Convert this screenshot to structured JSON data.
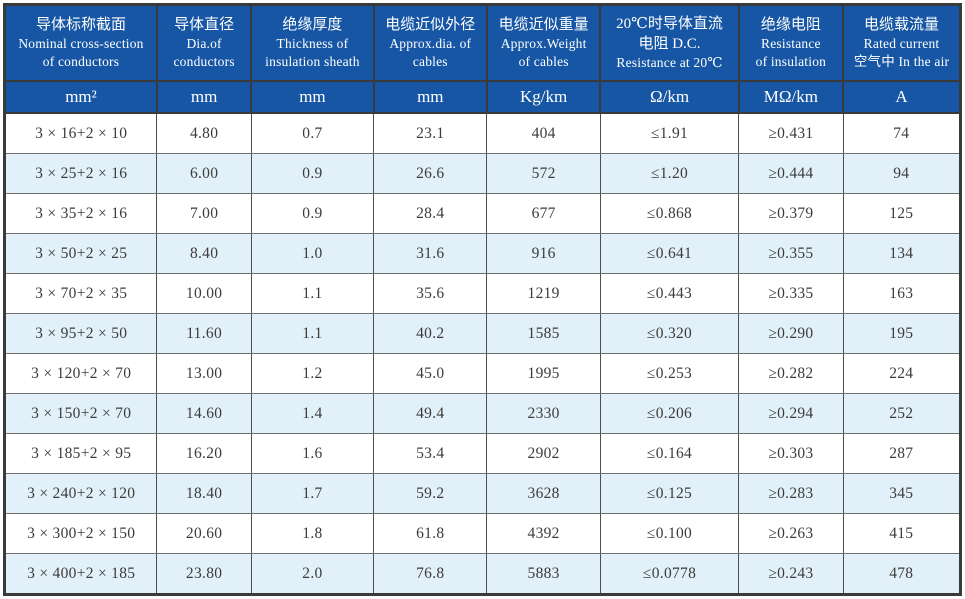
{
  "table": {
    "columns": [
      {
        "lines": [
          "导体标称截面",
          "Nominal cross-section",
          "of conductors"
        ],
        "unit": "mm²"
      },
      {
        "lines": [
          "导体直径",
          "Dia.of",
          "conductors"
        ],
        "unit": "mm"
      },
      {
        "lines": [
          "绝缘厚度",
          "Thickness of",
          "insulation sheath"
        ],
        "unit": "mm"
      },
      {
        "lines": [
          "电缆近似外径",
          "Approx.dia. of",
          "cables"
        ],
        "unit": "mm"
      },
      {
        "lines": [
          "电缆近似重量",
          "Approx.Weight",
          "of cables"
        ],
        "unit": "Kg/km"
      },
      {
        "lines": [
          "20℃时导体直流",
          "电阻 D.C.",
          "Resistance at 20℃"
        ],
        "unit": "Ω/km"
      },
      {
        "lines": [
          "绝缘电阻",
          "Resistance",
          "of insulation"
        ],
        "unit": "MΩ/km"
      },
      {
        "lines": [
          "电缆载流量",
          "Rated current",
          "空气中 In the air"
        ],
        "unit": "A"
      }
    ],
    "rows": [
      {
        "cells": [
          "3 × 16+2 × 10",
          "4.80",
          "0.7",
          "23.1",
          "404",
          "≤1.91",
          "≥0.431",
          "74"
        ]
      },
      {
        "cells": [
          "3 × 25+2 × 16",
          "6.00",
          "0.9",
          "26.6",
          "572",
          "≤1.20",
          "≥0.444",
          "94"
        ]
      },
      {
        "cells": [
          "3 × 35+2 × 16",
          "7.00",
          "0.9",
          "28.4",
          "677",
          "≤0.868",
          "≥0.379",
          "125"
        ]
      },
      {
        "cells": [
          "3 × 50+2 × 25",
          "8.40",
          "1.0",
          "31.6",
          "916",
          "≤0.641",
          "≥0.355",
          "134"
        ]
      },
      {
        "cells": [
          "3 × 70+2 × 35",
          "10.00",
          "1.1",
          "35.6",
          "1219",
          "≤0.443",
          "≥0.335",
          "163"
        ]
      },
      {
        "cells": [
          "3 × 95+2 × 50",
          "11.60",
          "1.1",
          "40.2",
          "1585",
          "≤0.320",
          "≥0.290",
          "195"
        ]
      },
      {
        "cells": [
          "3 × 120+2 × 70",
          "13.00",
          "1.2",
          "45.0",
          "1995",
          "≤0.253",
          "≥0.282",
          "224"
        ]
      },
      {
        "cells": [
          "3 × 150+2 × 70",
          "14.60",
          "1.4",
          "49.4",
          "2330",
          "≤0.206",
          "≥0.294",
          "252"
        ]
      },
      {
        "cells": [
          "3 × 185+2 × 95",
          "16.20",
          "1.6",
          "53.4",
          "2902",
          "≤0.164",
          "≥0.303",
          "287"
        ]
      },
      {
        "cells": [
          "3 × 240+2 × 120",
          "18.40",
          "1.7",
          "59.2",
          "3628",
          "≤0.125",
          "≥0.283",
          "345"
        ]
      },
      {
        "cells": [
          "3 × 300+2 × 150",
          "20.60",
          "1.8",
          "61.8",
          "4392",
          "≤0.100",
          "≥0.263",
          "415"
        ]
      },
      {
        "cells": [
          "3 × 400+2 × 185",
          "23.80",
          "2.0",
          "76.8",
          "5883",
          "≤0.0778",
          "≥0.243",
          "478"
        ]
      }
    ]
  },
  "colors": {
    "header_bg": "#1656a4",
    "row_alt_bg": "#e1f0f9",
    "border_dark": "#3a3a3a",
    "header_text": "#ffffff",
    "cell_text": "#3c3c3c"
  }
}
